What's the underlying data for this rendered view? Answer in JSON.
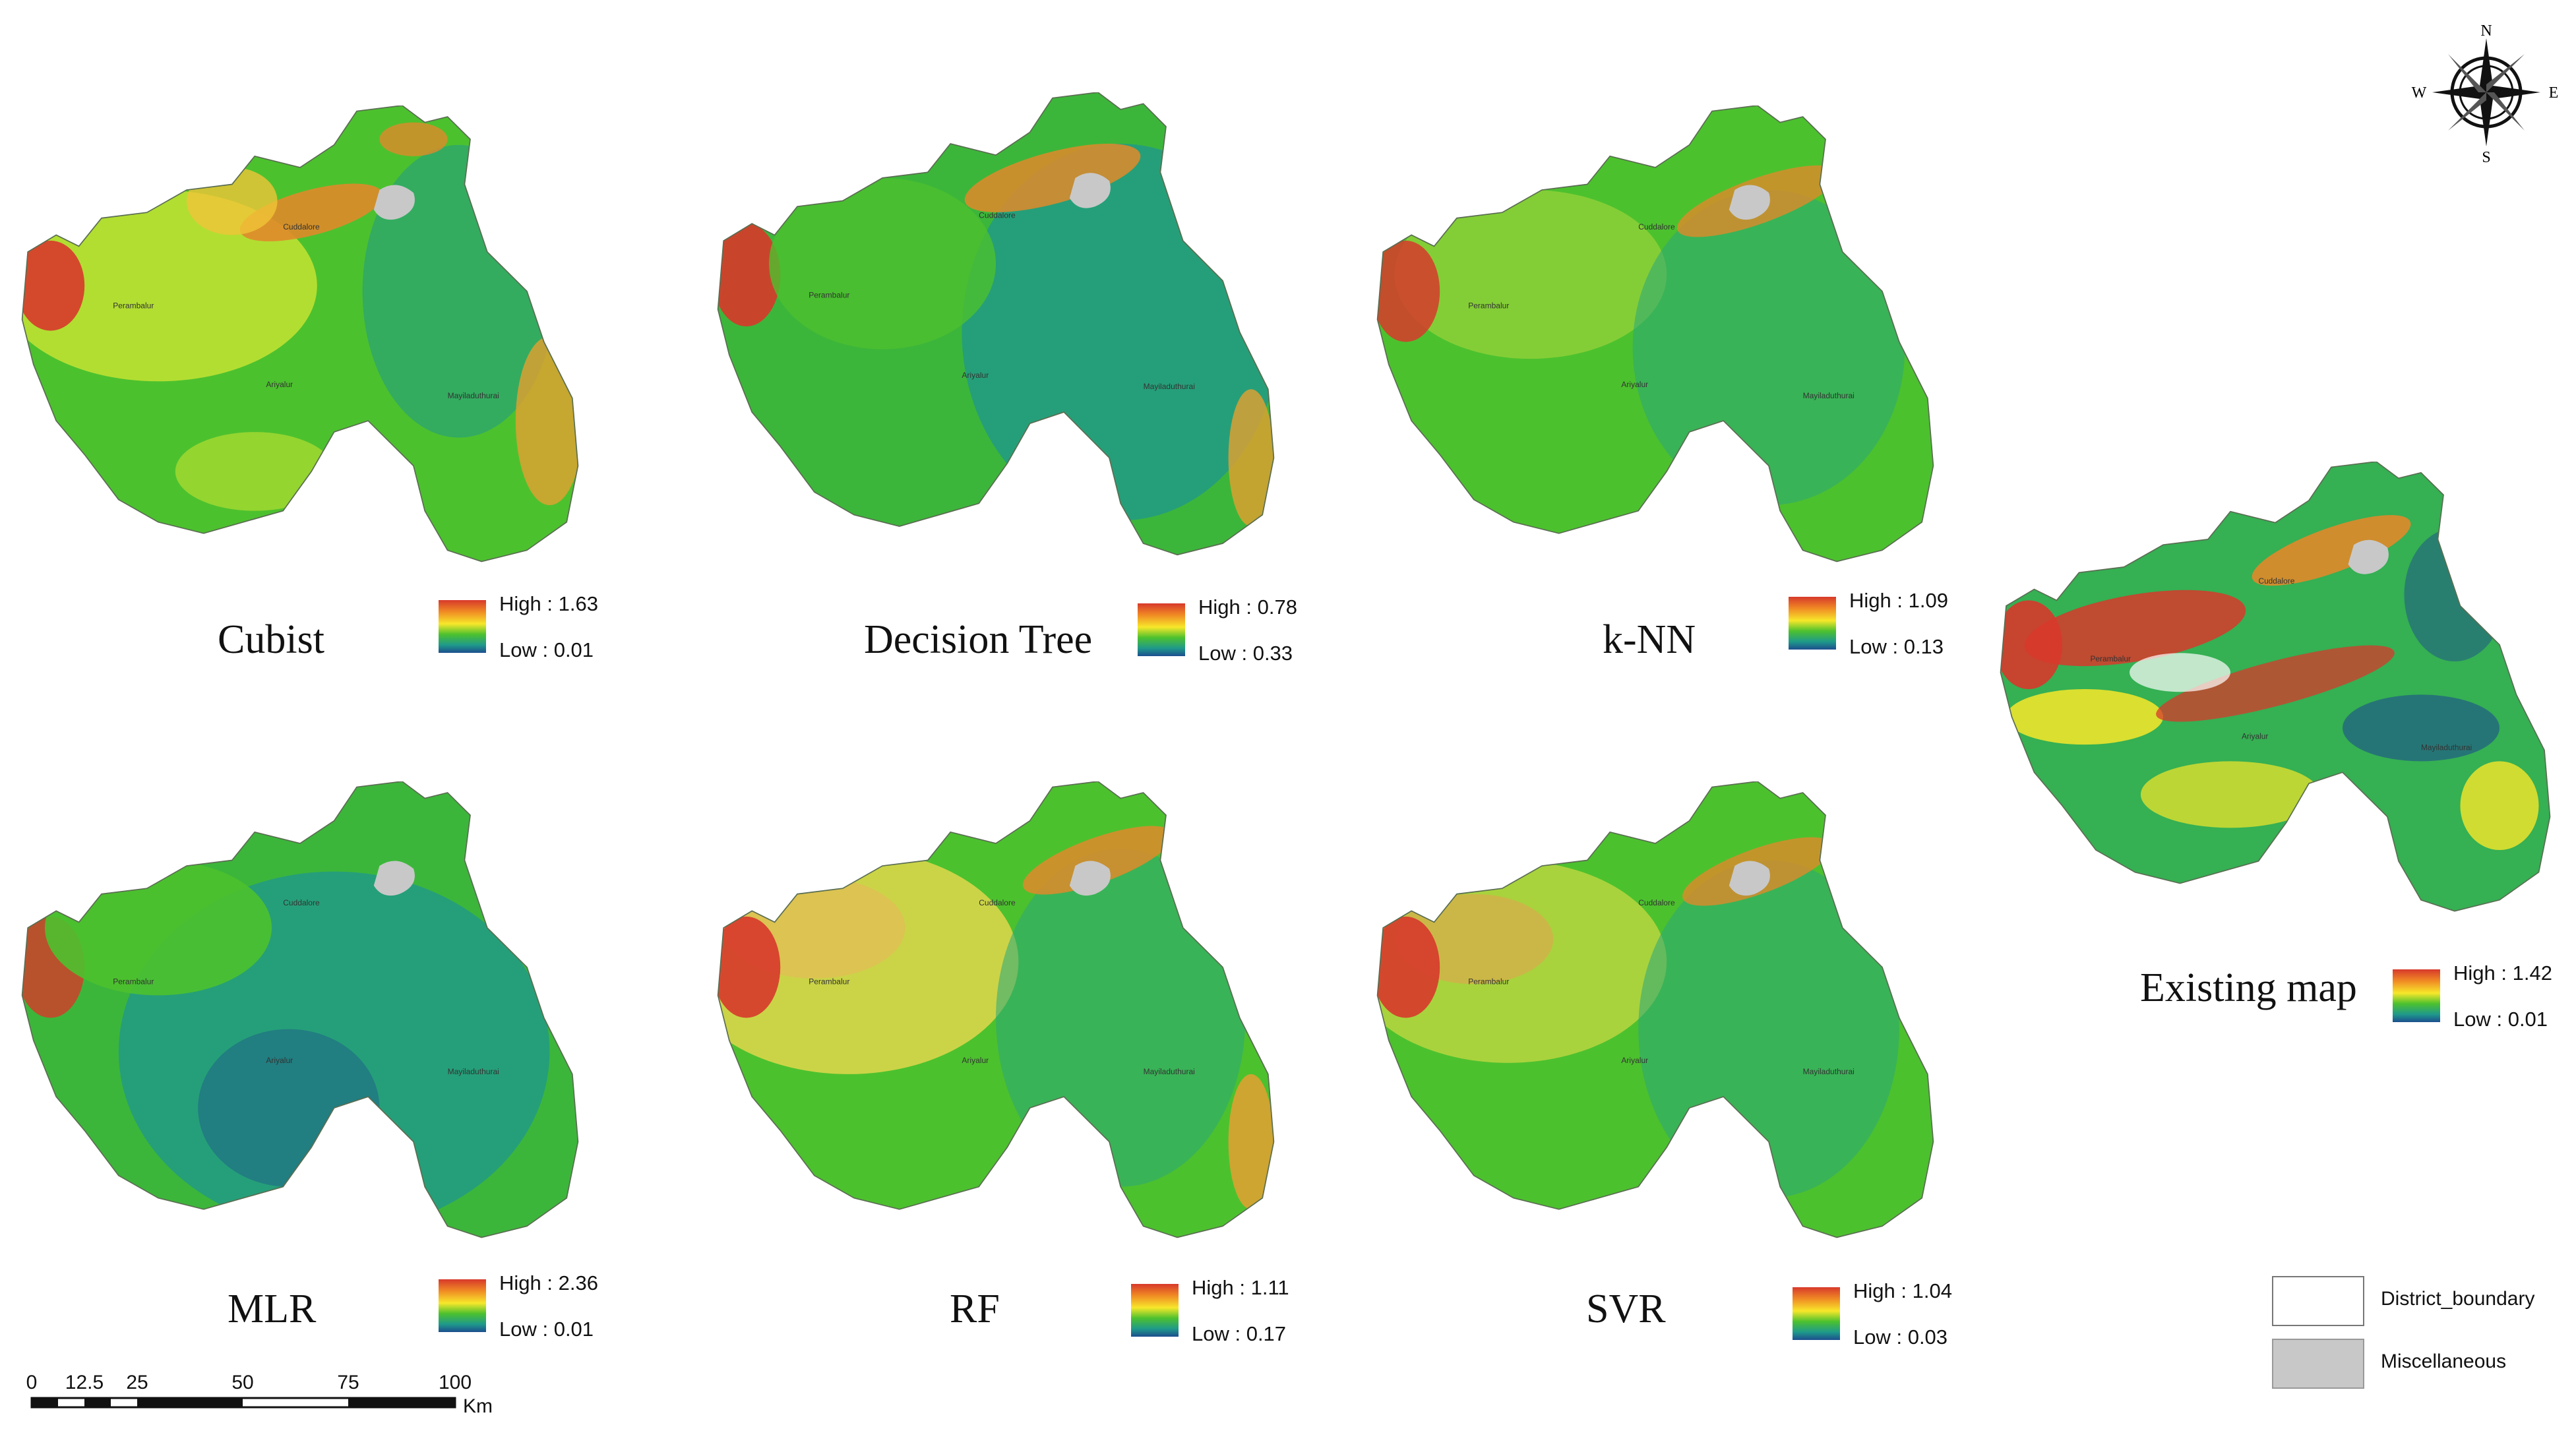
{
  "panels": [
    {
      "id": "cubist",
      "title": "Cubist",
      "high": "High : 1.63",
      "low": "Low : 0.01"
    },
    {
      "id": "decision-tree",
      "title": "Decision Tree",
      "high": "High : 0.78",
      "low": "Low : 0.33"
    },
    {
      "id": "knn",
      "title": "k-NN",
      "high": "High : 1.09",
      "low": "Low : 0.13"
    },
    {
      "id": "mlr",
      "title": "MLR",
      "high": "High : 2.36",
      "low": "Low : 0.01"
    },
    {
      "id": "rf",
      "title": "RF",
      "high": "High : 1.11",
      "low": "Low : 0.17"
    },
    {
      "id": "svr",
      "title": "SVR",
      "high": "High : 1.04",
      "low": "Low : 0.03"
    },
    {
      "id": "existing",
      "title": "Existing map",
      "high": "High : 1.42",
      "low": "Low : 0.01"
    }
  ],
  "compass": {
    "n": "N",
    "s": "S",
    "e": "E",
    "w": "W"
  },
  "scale": {
    "ticks": [
      "0",
      "12.5",
      "25",
      "50",
      "75",
      "100"
    ],
    "unit": "Km"
  },
  "key": {
    "district": "District_boundary",
    "misc": "Miscellaneous"
  },
  "colors": {
    "high": "#d7392b",
    "mid": "#f7e72a",
    "green": "#4cc12e",
    "teal": "#1f9a8a",
    "low": "#1c4e8e",
    "misc": "#c8c8c8"
  },
  "town_labels": [
    "Cuddalore",
    "Perambalur",
    "Ariyalur",
    "Mayiladuthurai"
  ]
}
